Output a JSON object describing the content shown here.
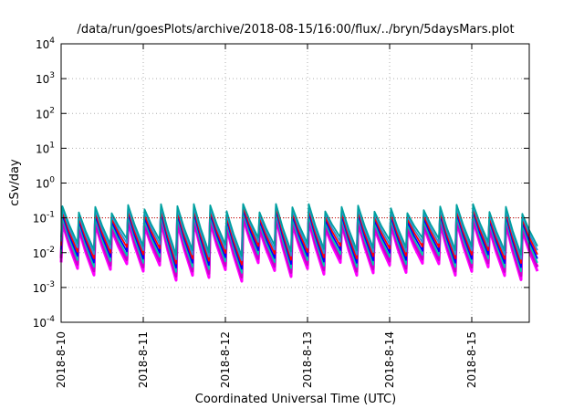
{
  "chart_data": {
    "type": "line",
    "title": "/data/run/goesPlots/archive/2018-08-15/16:00/flux/../bryn/5daysMars.plot",
    "xlabel": "Coordinated Universal Time (UTC)",
    "ylabel": "cSv/day",
    "yscale": "log",
    "ylim": [
      0.0001,
      10000
    ],
    "y_ticks": [
      {
        "base": "10",
        "exp": "-4",
        "value": 0.0001
      },
      {
        "base": "10",
        "exp": "-3",
        "value": 0.001
      },
      {
        "base": "10",
        "exp": "-2",
        "value": 0.01
      },
      {
        "base": "10",
        "exp": "-1",
        "value": 0.1
      },
      {
        "base": "10",
        "exp": "0",
        "value": 1
      },
      {
        "base": "10",
        "exp": "1",
        "value": 10
      },
      {
        "base": "10",
        "exp": "2",
        "value": 100
      },
      {
        "base": "10",
        "exp": "3",
        "value": 1000
      },
      {
        "base": "10",
        "exp": "4",
        "value": 10000
      }
    ],
    "x_ticks": [
      "2018-8-10",
      "2018-8-11",
      "2018-8-12",
      "2018-8-13",
      "2018-8-14",
      "2018-8-15"
    ],
    "xlim_days": [
      0,
      5.7
    ],
    "grid": true,
    "reference_line": {
      "value": 0.1,
      "color": "#cc0000"
    },
    "series_colors": [
      "#ff00ff",
      "#cc00cc",
      "#00ccaa",
      "#0000ff",
      "#ff0000",
      "#2f8fd8",
      "#00a0a0"
    ],
    "series_envelope": {
      "period_days": 0.2,
      "peak_range": [
        0.07,
        0.18
      ],
      "trough_range": [
        0.003,
        0.012
      ]
    }
  }
}
